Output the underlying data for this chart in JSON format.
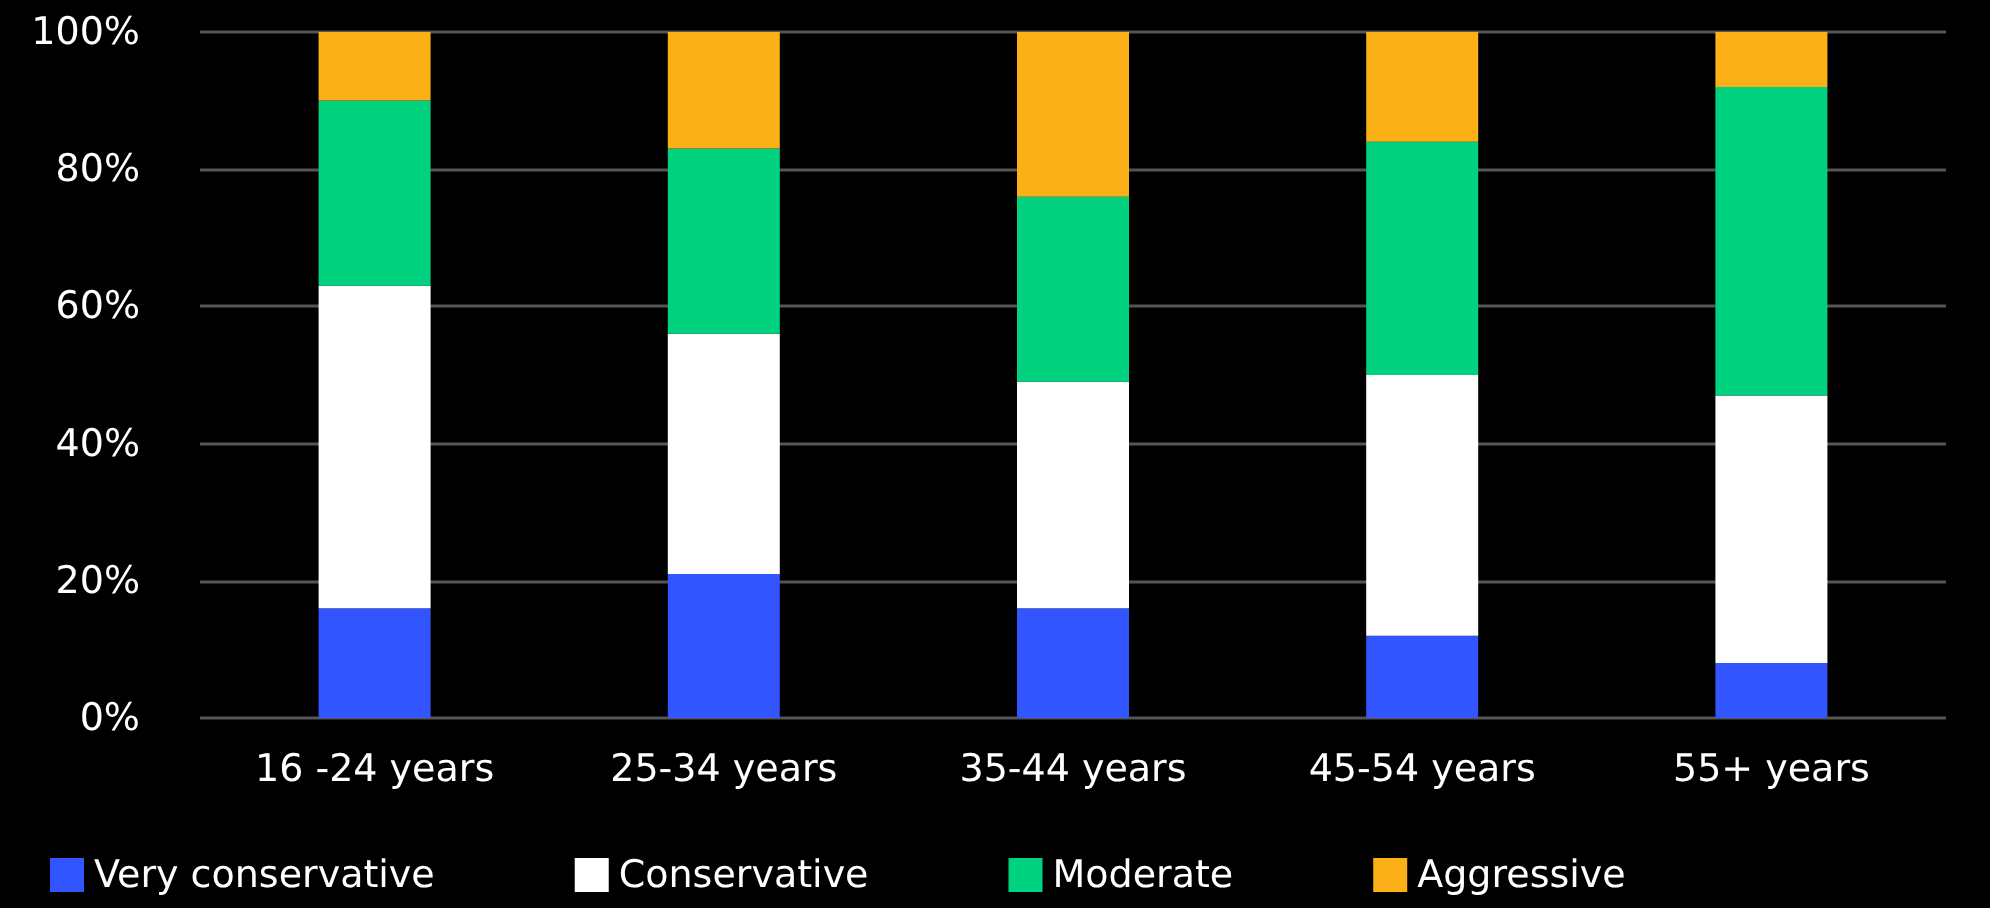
{
  "chart_data": {
    "type": "bar",
    "stacked": true,
    "categories": [
      "16 -24 years",
      "25-34 years",
      "35-44 years",
      "45-54 years",
      "55+ years"
    ],
    "series": [
      {
        "name": "Very conservative",
        "color": "#3355ff",
        "values": [
          16,
          21,
          16,
          12,
          8
        ]
      },
      {
        "name": "Conservative",
        "color": "#ffffff",
        "values": [
          47,
          35,
          33,
          38,
          39
        ]
      },
      {
        "name": "Moderate",
        "color": "#00d27f",
        "values": [
          27,
          27,
          27,
          34,
          45
        ]
      },
      {
        "name": "Aggressive",
        "color": "#fbb017",
        "values": [
          10,
          17,
          24,
          16,
          8
        ]
      }
    ],
    "ylim": [
      0,
      100
    ],
    "yticks": [
      {
        "value": 0,
        "label": "0%"
      },
      {
        "value": 20,
        "label": "20%"
      },
      {
        "value": 40,
        "label": "40%"
      },
      {
        "value": 60,
        "label": "60%"
      },
      {
        "value": 80,
        "label": "80%"
      },
      {
        "value": 100,
        "label": "100%"
      }
    ],
    "grid": "y",
    "legend": "bottom"
  }
}
